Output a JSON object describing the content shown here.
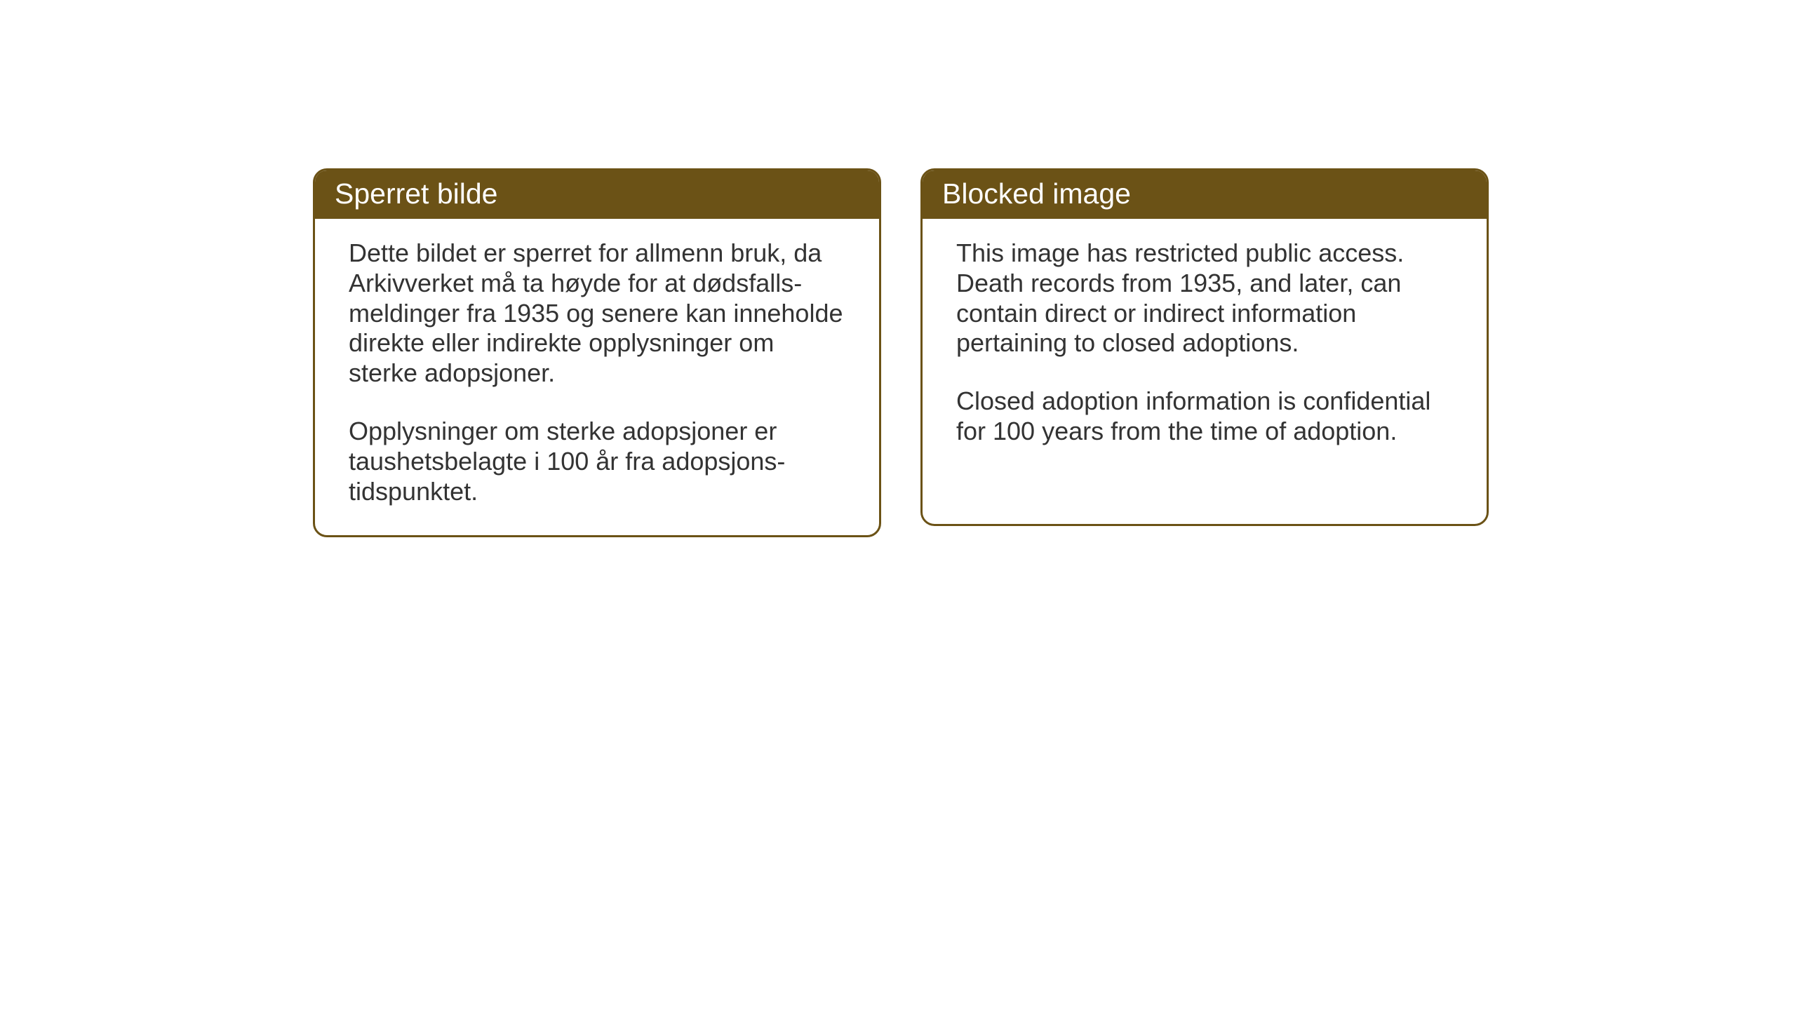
{
  "cards": {
    "norwegian": {
      "title": "Sperret bilde",
      "paragraph1": "Dette bildet er sperret for allmenn bruk, da Arkivverket må ta høyde for at dødsfalls-meldinger fra 1935 og senere kan inneholde direkte eller indirekte opplysninger om sterke adopsjoner.",
      "paragraph2": "Opplysninger om sterke adopsjoner er taushetsbelagte i 100 år fra adopsjons-tidspunktet."
    },
    "english": {
      "title": "Blocked image",
      "paragraph1": "This image has restricted public access. Death records from 1935, and later, can contain direct or indirect information pertaining to closed adoptions.",
      "paragraph2": "Closed adoption information is confidential for 100 years from the time of adoption."
    }
  },
  "styling": {
    "header_background": "#6b5216",
    "header_text_color": "#ffffff",
    "border_color": "#6b5216",
    "body_text_color": "#333333",
    "page_background": "#ffffff",
    "border_radius": 20,
    "border_width": 3,
    "title_fontsize": 41,
    "body_fontsize": 36
  }
}
